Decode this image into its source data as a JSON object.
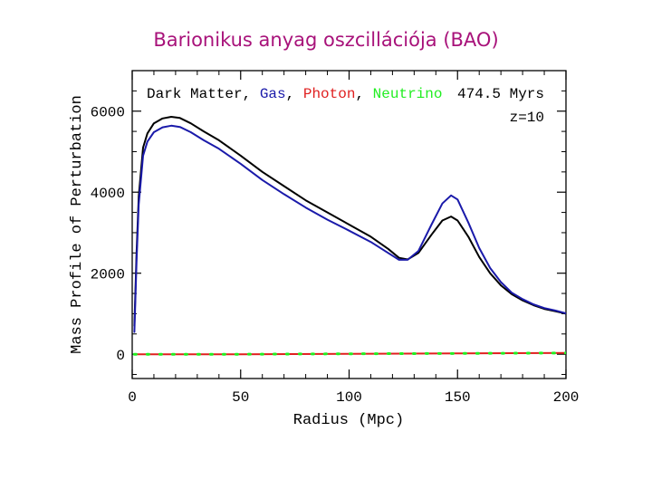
{
  "slide": {
    "title": "Barionikus anyag oszcillációja (BAO)"
  },
  "chart_data": {
    "type": "line",
    "title": "",
    "xlabel": "Radius (Mpc)",
    "ylabel": "Mass Profile of Perturbation",
    "xlim": [
      0,
      200
    ],
    "ylim": [
      -600,
      7000
    ],
    "x_ticks": [
      0,
      50,
      100,
      150,
      200
    ],
    "y_ticks": [
      0,
      2000,
      4000,
      6000
    ],
    "grid": false,
    "legend_position": "top-left, inline",
    "annotations": [
      "474.5 Myrs",
      "z=10"
    ],
    "series": [
      {
        "name": "Dark Matter",
        "color": "#000000",
        "x": [
          1,
          2,
          3,
          5,
          7,
          10,
          14,
          18,
          22,
          27,
          33,
          40,
          50,
          60,
          70,
          80,
          90,
          100,
          110,
          118,
          123,
          127,
          132,
          138,
          143,
          147,
          150,
          155,
          160,
          165,
          170,
          175,
          180,
          185,
          190,
          195,
          200
        ],
        "y": [
          700,
          2500,
          3900,
          5100,
          5450,
          5700,
          5820,
          5860,
          5830,
          5700,
          5500,
          5280,
          4900,
          4500,
          4150,
          3800,
          3500,
          3200,
          2900,
          2600,
          2380,
          2340,
          2500,
          2950,
          3300,
          3400,
          3300,
          2900,
          2400,
          2000,
          1700,
          1480,
          1330,
          1210,
          1120,
          1060,
          1000
        ]
      },
      {
        "name": "Gas",
        "color": "#1a1aaa",
        "x": [
          1,
          2,
          3,
          5,
          7,
          10,
          14,
          18,
          22,
          27,
          33,
          40,
          50,
          60,
          70,
          80,
          90,
          100,
          110,
          118,
          123,
          127,
          132,
          138,
          143,
          147,
          150,
          155,
          160,
          165,
          170,
          175,
          180,
          185,
          190,
          195,
          200
        ],
        "y": [
          550,
          2300,
          3700,
          4900,
          5250,
          5480,
          5600,
          5640,
          5610,
          5480,
          5280,
          5070,
          4700,
          4300,
          3950,
          3620,
          3320,
          3050,
          2770,
          2500,
          2330,
          2330,
          2550,
          3200,
          3720,
          3920,
          3820,
          3250,
          2620,
          2130,
          1780,
          1520,
          1360,
          1230,
          1140,
          1080,
          1010
        ]
      },
      {
        "name": "Photon",
        "color": "#e02020",
        "x": [
          1,
          50,
          100,
          150,
          200
        ],
        "y": [
          0,
          0,
          10,
          20,
          30
        ]
      },
      {
        "name": "Neutrino",
        "color": "#22ee22",
        "x": [
          1,
          50,
          100,
          150,
          200
        ],
        "y": [
          0,
          0,
          10,
          20,
          30
        ]
      }
    ]
  }
}
